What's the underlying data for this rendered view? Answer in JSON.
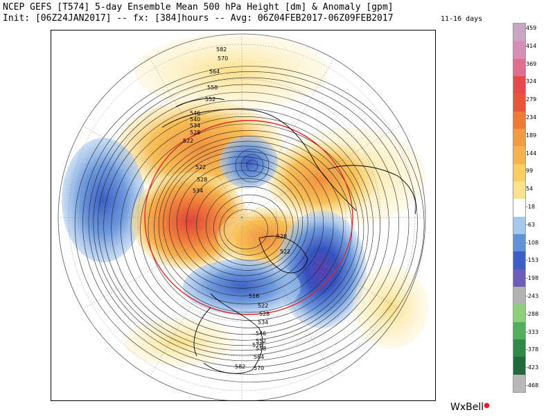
{
  "header": {
    "title": "NCEP GEFS [T574] 5-day Ensemble Mean 500 hPa Height [dm] & Anomaly [gpm]",
    "init_line": "Init: [06Z24JAN2017] -- fx: [384]hours -- Avg: 06Z04FEB2017-06Z09FEB2017",
    "range_label": "11-16 days"
  },
  "colorbar": {
    "labels": [
      "459",
      "414",
      "369",
      "324",
      "279",
      "234",
      "189",
      "144",
      "99",
      "54",
      "-18",
      "-63",
      "-108",
      "-153",
      "-198",
      "-243",
      "-288",
      "-333",
      "-378",
      "-423",
      "-468"
    ],
    "colors": [
      "#c9a6c4",
      "#d88db5",
      "#e06e8f",
      "#e44a4a",
      "#e8563a",
      "#ee7a38",
      "#f29a44",
      "#f6b24e",
      "#f9cd63",
      "#fbe38c",
      "#ffffff",
      "#a6c8ec",
      "#5f93d8",
      "#3b5fc4",
      "#6e5cb8",
      "#b2b2b2",
      "#8fd07a",
      "#52b05c",
      "#2f8a48",
      "#1f6b3c",
      "#b8b8b8"
    ]
  },
  "map": {
    "contour_labels": [
      "582",
      "570",
      "564",
      "558",
      "552",
      "546",
      "540",
      "534",
      "528",
      "522",
      "522",
      "528",
      "534",
      "528",
      "522",
      "516",
      "522",
      "528",
      "534",
      "546",
      "552",
      "558",
      "564",
      "570",
      "582",
      "576"
    ]
  },
  "logo": {
    "text": "WxBell"
  }
}
